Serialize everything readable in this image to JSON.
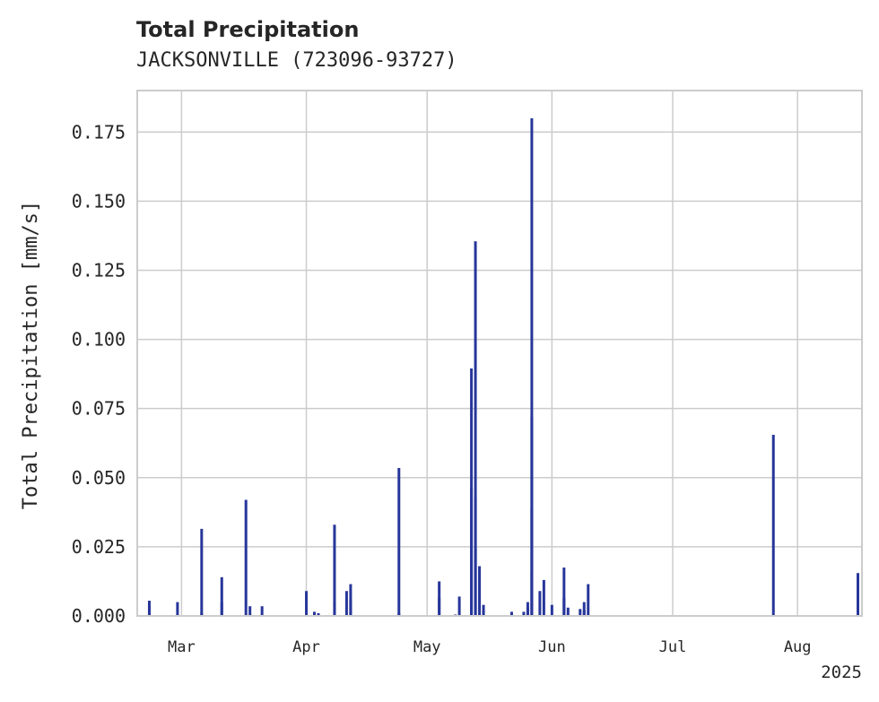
{
  "chart_data": {
    "type": "bar",
    "title": "Total Precipitation",
    "subtitle": "JACKSONVILLE (723096-93727)",
    "ylabel": "Total Precipitation [mm/s]",
    "xlabel": "",
    "ylim": [
      0,
      0.19
    ],
    "y_ticks": [
      "0.000",
      "0.025",
      "0.050",
      "0.075",
      "0.100",
      "0.125",
      "0.150",
      "0.175"
    ],
    "x_ticks": [
      {
        "date": "2025-03-01",
        "label": "Mar"
      },
      {
        "date": "2025-04-01",
        "label": "Apr"
      },
      {
        "date": "2025-05-01",
        "label": "May"
      },
      {
        "date": "2025-06-01",
        "label": "Jun"
      },
      {
        "date": "2025-07-01",
        "label": "Jul"
      },
      {
        "date": "2025-08-01",
        "label": "Aug"
      }
    ],
    "x_year_label": "2025",
    "xlim": [
      "2025-02-18",
      "2025-08-17"
    ],
    "grid": true,
    "bar_color": "#27369a",
    "series": [
      {
        "points": [
          [
            "2025-02-21",
            0.0055
          ],
          [
            "2025-02-21",
            0.0035
          ],
          [
            "2025-02-28",
            0.005
          ],
          [
            "2025-03-06",
            0.001
          ],
          [
            "2025-03-06",
            0.0315
          ],
          [
            "2025-03-11",
            0.005
          ],
          [
            "2025-03-11",
            0.014
          ],
          [
            "2025-03-17",
            0.042
          ],
          [
            "2025-03-18",
            0.0035
          ],
          [
            "2025-03-21",
            0.0035
          ],
          [
            "2025-04-01",
            0.009
          ],
          [
            "2025-04-03",
            0.0015
          ],
          [
            "2025-04-04",
            0.001
          ],
          [
            "2025-04-08",
            0.033
          ],
          [
            "2025-04-08",
            0.005
          ],
          [
            "2025-04-11",
            0.009
          ],
          [
            "2025-04-12",
            0.0115
          ],
          [
            "2025-04-12",
            0.006
          ],
          [
            "2025-04-24",
            0.0535
          ],
          [
            "2025-04-24",
            0.001
          ],
          [
            "2025-05-04",
            0.0065
          ],
          [
            "2025-05-04",
            0.0125
          ],
          [
            "2025-05-08",
            0.0005
          ],
          [
            "2025-05-09",
            0.007
          ],
          [
            "2025-05-12",
            0.0895
          ],
          [
            "2025-05-12",
            0.046
          ],
          [
            "2025-05-13",
            0.0245
          ],
          [
            "2025-05-13",
            0.043
          ],
          [
            "2025-05-13",
            0.1355
          ],
          [
            "2025-05-14",
            0.018
          ],
          [
            "2025-05-15",
            0.002
          ],
          [
            "2025-05-15",
            0.004
          ],
          [
            "2025-05-22",
            0.0015
          ],
          [
            "2025-05-25",
            0.0015
          ],
          [
            "2025-05-26",
            0.003
          ],
          [
            "2025-05-26",
            0.005
          ],
          [
            "2025-05-27",
            0.039
          ],
          [
            "2025-05-27",
            0.18
          ],
          [
            "2025-05-27",
            0.072
          ],
          [
            "2025-05-27",
            0.016
          ],
          [
            "2025-05-29",
            0.009
          ],
          [
            "2025-05-30",
            0.013
          ],
          [
            "2025-06-01",
            0.004
          ],
          [
            "2025-06-04",
            0.0065
          ],
          [
            "2025-06-04",
            0.0175
          ],
          [
            "2025-06-05",
            0.003
          ],
          [
            "2025-06-08",
            0.0025
          ],
          [
            "2025-06-09",
            0.005
          ],
          [
            "2025-06-09",
            0.002
          ],
          [
            "2025-06-10",
            0.0115
          ],
          [
            "2025-07-26",
            0.0655
          ],
          [
            "2025-08-16",
            0.0155
          ],
          [
            "2025-08-16",
            0.011
          ]
        ]
      }
    ]
  }
}
